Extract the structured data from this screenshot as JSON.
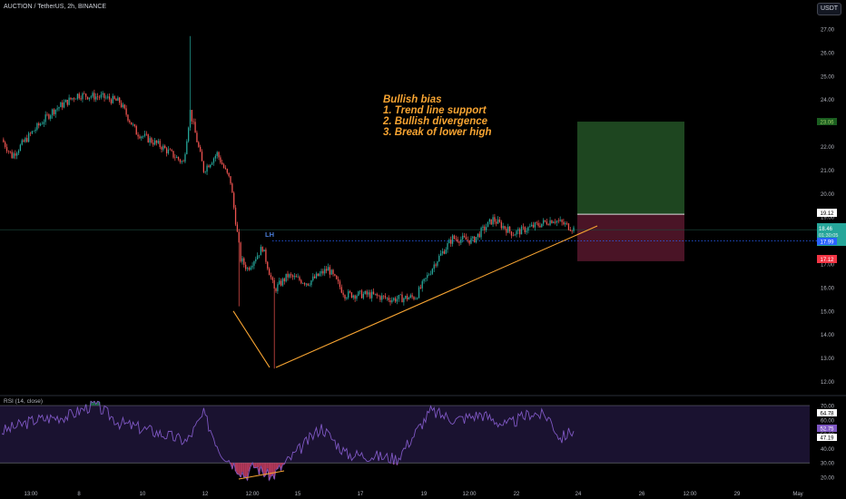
{
  "header": {
    "symbol_title": "AUCTION / TetherUS, 2h, BINANCE",
    "currency": "USDT"
  },
  "annotation": {
    "lines": [
      "Bullish bias",
      "1. Trend line support",
      "2. Bullish divergence",
      "3. Break of  lower high"
    ],
    "lh_label": "LH"
  },
  "rsi": {
    "title": "RSI (14, close)",
    "ticks": [
      "70.00",
      "60.00",
      "50.00",
      "40.00",
      "30.00",
      "20.00"
    ],
    "upper_band": 70,
    "lower_band": 30,
    "values_badges": [
      "64.78",
      "52.75",
      "47.19"
    ]
  },
  "price_badges": {
    "target": "23.06",
    "entry": "19.12",
    "current": "18.46",
    "countdown": "01:30:05",
    "last": "17.99",
    "stop": "17.12"
  },
  "colors": {
    "up": "#26a69a",
    "down": "#ef5350",
    "trendline": "#f7a432",
    "annotation": "#f7a432",
    "profit_zone": "#1e4620",
    "loss_zone": "#4a1426",
    "rsi_line": "#7e57c2",
    "lh": "#2962ff"
  },
  "chart_data": {
    "type": "candlestick",
    "title": "AUCTION / TetherUS, 2h, BINANCE",
    "y_axis_ticks": [
      "27.00",
      "26.00",
      "25.00",
      "24.00",
      "23.00",
      "22.00",
      "21.00",
      "20.00",
      "19.00",
      "18.00",
      "17.00",
      "16.00",
      "15.00",
      "14.00",
      "13.00",
      "12.00"
    ],
    "ylim": [
      11.7,
      27.7
    ],
    "x_axis_ticks": [
      "13:00",
      "8",
      "10",
      "12",
      "12:00",
      "15",
      "17",
      "19",
      "12:00",
      "22",
      "24",
      "26",
      "12:00",
      "29",
      "May"
    ],
    "price_close_path": [
      {
        "i": 0,
        "close": 22.3
      },
      {
        "i": 6,
        "close": 21.6
      },
      {
        "i": 18,
        "close": 22.6
      },
      {
        "i": 30,
        "close": 23.5
      },
      {
        "i": 45,
        "close": 24.2
      },
      {
        "i": 60,
        "close": 24.1
      },
      {
        "i": 70,
        "close": 23.9
      },
      {
        "i": 80,
        "close": 22.6
      },
      {
        "i": 95,
        "close": 22.0
      },
      {
        "i": 108,
        "close": 21.3
      },
      {
        "i": 112,
        "close": 23.5
      },
      {
        "i": 120,
        "close": 21.0
      },
      {
        "i": 128,
        "close": 21.7
      },
      {
        "i": 136,
        "close": 20.5
      },
      {
        "i": 142,
        "close": 17.2
      },
      {
        "i": 146,
        "close": 16.8
      },
      {
        "i": 155,
        "close": 17.7
      },
      {
        "i": 162,
        "close": 15.9
      },
      {
        "i": 170,
        "close": 16.5
      },
      {
        "i": 182,
        "close": 16.2
      },
      {
        "i": 194,
        "close": 16.8
      },
      {
        "i": 204,
        "close": 15.7
      },
      {
        "i": 218,
        "close": 15.7
      },
      {
        "i": 232,
        "close": 15.5
      },
      {
        "i": 246,
        "close": 15.6
      },
      {
        "i": 258,
        "close": 17.1
      },
      {
        "i": 268,
        "close": 18.1
      },
      {
        "i": 280,
        "close": 18.0
      },
      {
        "i": 292,
        "close": 18.9
      },
      {
        "i": 304,
        "close": 18.3
      },
      {
        "i": 316,
        "close": 18.6
      },
      {
        "i": 328,
        "close": 18.9
      },
      {
        "i": 340,
        "close": 18.5
      }
    ],
    "trendlines": [
      {
        "from": [
          12.2,
          15.0
        ],
        "to": [
          12.6,
          12.6
        ]
      },
      {
        "from": [
          12.6,
          12.6
        ],
        "to": [
          24.3,
          18.8
        ]
      }
    ],
    "long_position": {
      "target": 23.06,
      "entry": 19.12,
      "stop": 17.12
    },
    "rsi_series": [
      {
        "i": 0,
        "v": 52
      },
      {
        "i": 20,
        "v": 60
      },
      {
        "i": 40,
        "v": 63
      },
      {
        "i": 55,
        "v": 71
      },
      {
        "i": 70,
        "v": 58
      },
      {
        "i": 90,
        "v": 52
      },
      {
        "i": 110,
        "v": 45
      },
      {
        "i": 120,
        "v": 64
      },
      {
        "i": 130,
        "v": 38
      },
      {
        "i": 145,
        "v": 21
      },
      {
        "i": 150,
        "v": 28
      },
      {
        "i": 160,
        "v": 20
      },
      {
        "i": 175,
        "v": 37
      },
      {
        "i": 190,
        "v": 55
      },
      {
        "i": 205,
        "v": 36
      },
      {
        "i": 220,
        "v": 35
      },
      {
        "i": 235,
        "v": 33
      },
      {
        "i": 255,
        "v": 66
      },
      {
        "i": 270,
        "v": 60
      },
      {
        "i": 285,
        "v": 64
      },
      {
        "i": 300,
        "v": 56
      },
      {
        "i": 315,
        "v": 65
      },
      {
        "i": 325,
        "v": 62
      },
      {
        "i": 332,
        "v": 47
      },
      {
        "i": 340,
        "v": 53
      }
    ]
  }
}
